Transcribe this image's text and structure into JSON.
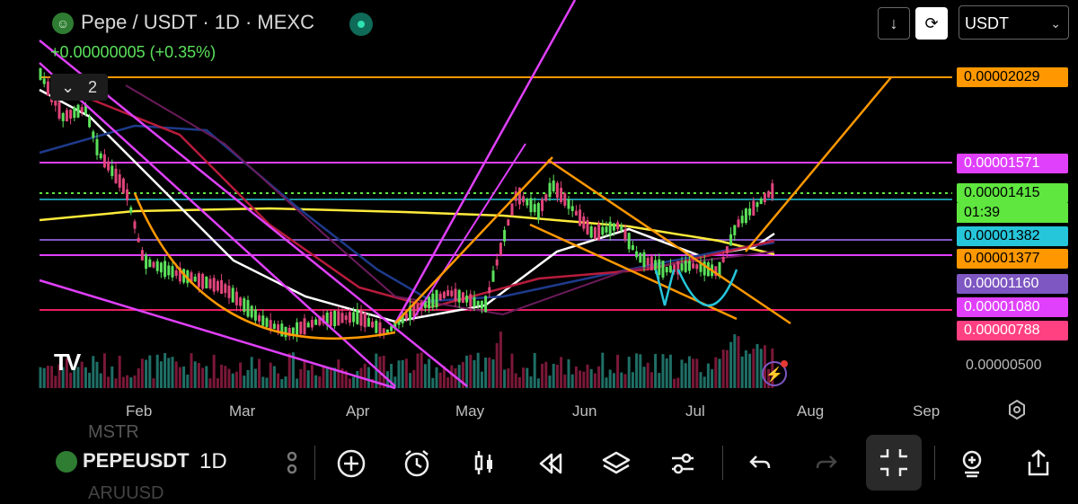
{
  "header": {
    "title": "Pepe / USDT · 1D · MEXC",
    "change": "+0.00000005 (+0.35%)",
    "currency_select": "USDT",
    "indicator_count": "2"
  },
  "price_labels": [
    {
      "value": "0.00002029",
      "bg": "#ff9800",
      "fg": "#000000"
    },
    {
      "value": "0.00001571",
      "bg": "#e040fb",
      "fg": "#ffffff"
    },
    {
      "value": "0.00001415",
      "bg": "#5fe63f",
      "fg": "#000000"
    },
    {
      "value": "0.00001382",
      "bg": "#26c6da",
      "fg": "#000000"
    },
    {
      "value": "0.00001377",
      "bg": "#ff9800",
      "fg": "#000000"
    },
    {
      "value": "0.00001160",
      "bg": "#7e57c2",
      "fg": "#ffffff"
    },
    {
      "value": "0.00001080",
      "bg": "#e040fb",
      "fg": "#ffffff"
    },
    {
      "value": "0.00000788",
      "bg": "#ff4081",
      "fg": "#ffffff"
    }
  ],
  "countdown": "01:39",
  "scale_low": "0.00000500",
  "x_axis": [
    "Feb",
    "Mar",
    "Apr",
    "May",
    "Jun",
    "Jul",
    "Aug",
    "Sep"
  ],
  "bottom_toolbar": {
    "symbol": "PEPEUSDT",
    "symbol_above": "MSTR",
    "symbol_below": "ARUUSD",
    "timeframe": "1D",
    "icons": [
      "candle-type-icon",
      "add-icon",
      "alarm-icon",
      "candles-icon",
      "replay-icon",
      "layers-icon",
      "settings-sliders-icon",
      "undo-icon",
      "redo-icon",
      "fullscreen-exit-icon",
      "add-indicator-icon",
      "share-icon"
    ]
  },
  "colors": {
    "accent_up": "#5be15b",
    "accent_down": "#e0457b",
    "volume_up": "#26a69a",
    "volume_down": "#c2185b"
  }
}
